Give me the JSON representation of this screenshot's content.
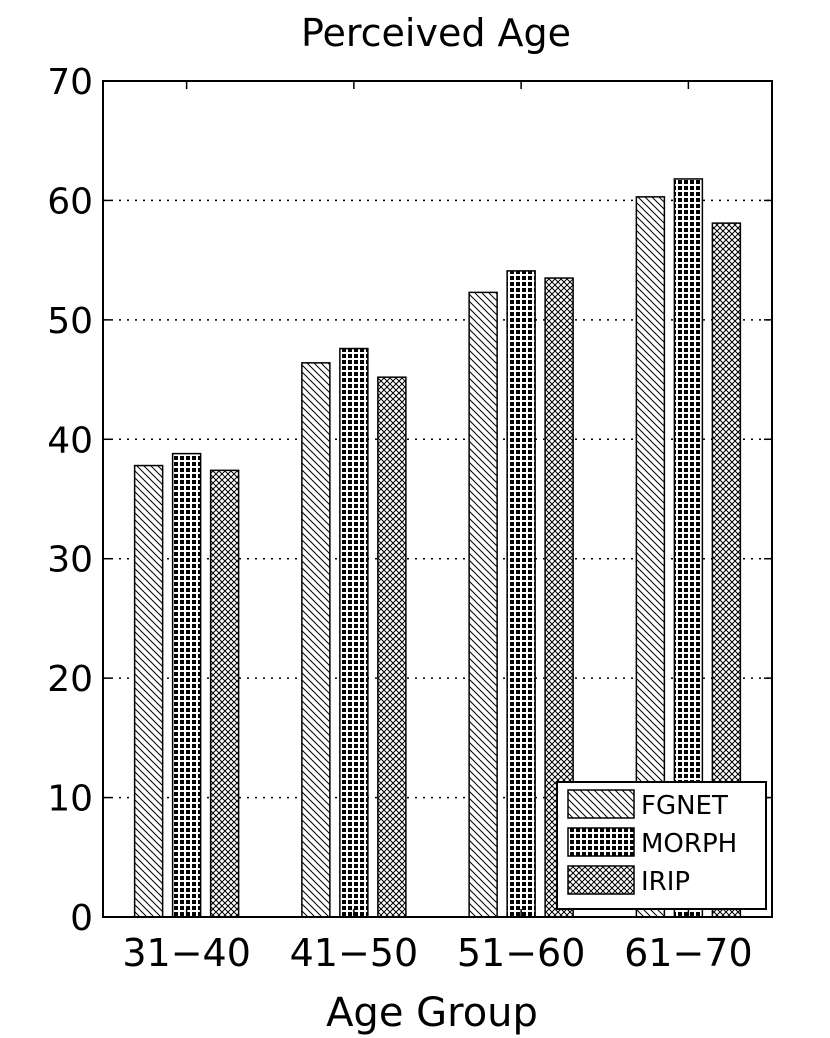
{
  "chart_data": {
    "type": "bar",
    "title": "Perceived Age",
    "xlabel": "Age Group",
    "ylabel": "",
    "categories": [
      "31−40",
      "41−50",
      "51−60",
      "61−70"
    ],
    "series": [
      {
        "name": "FGNET",
        "pattern": "diagonal-hatch",
        "values": [
          37.8,
          46.4,
          52.3,
          60.3
        ]
      },
      {
        "name": "MORPH",
        "pattern": "dark-grid",
        "values": [
          38.8,
          47.6,
          54.1,
          61.8
        ]
      },
      {
        "name": "IRIP",
        "pattern": "crosshatch",
        "values": [
          37.4,
          45.2,
          53.5,
          58.1
        ]
      }
    ],
    "ylim": [
      0,
      70
    ],
    "yticks": [
      0,
      10,
      20,
      30,
      40,
      50,
      60,
      70
    ],
    "grid": "y-dotted",
    "legend_position": "bottom-right",
    "colors": {
      "bar_edge": "#000000",
      "background": "#ffffff"
    }
  }
}
